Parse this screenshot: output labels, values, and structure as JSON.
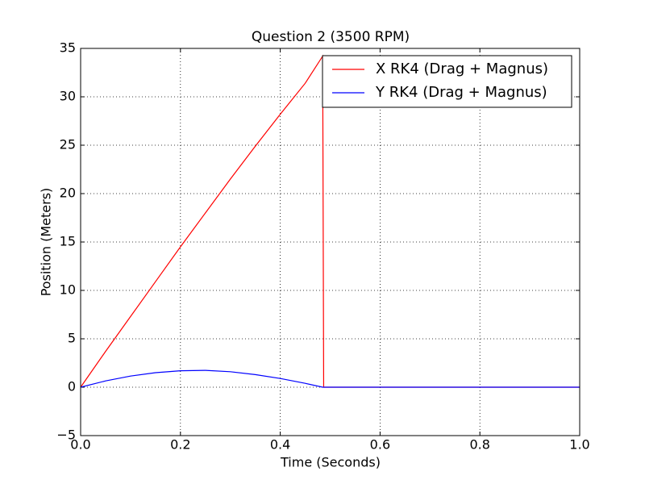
{
  "chart_data": {
    "type": "line",
    "title": "Question 2 (3500 RPM)",
    "xlabel": "Time (Seconds)",
    "ylabel": "Position (Meters)",
    "x": [
      0,
      0.05,
      0.1,
      0.15,
      0.2,
      0.25,
      0.3,
      0.35,
      0.4,
      0.45,
      0.485,
      0.487,
      0.6,
      0.8,
      1.0
    ],
    "series": [
      {
        "name": "X RK4 (Drag + Magnus)",
        "color": "#ff0000",
        "values": [
          0,
          3.7,
          7.3,
          10.9,
          14.5,
          18.0,
          21.5,
          24.9,
          28.2,
          31.4,
          34.2,
          0,
          0,
          0,
          0
        ]
      },
      {
        "name": "Y RK4 (Drag + Magnus)",
        "color": "#0000ff",
        "values": [
          0,
          0.65,
          1.15,
          1.5,
          1.7,
          1.74,
          1.6,
          1.3,
          0.9,
          0.4,
          0,
          0,
          0,
          0,
          0
        ]
      }
    ],
    "xlim": [
      0,
      1.0
    ],
    "ylim": [
      -5,
      35
    ],
    "xticks": [
      {
        "value": 0,
        "label": "0.0"
      },
      0.2,
      0.4,
      0.6,
      0.8,
      {
        "value": 1.0,
        "label": "1.0"
      }
    ],
    "yticks": [
      {
        "value": -5,
        "label": "−5"
      },
      0,
      5,
      10,
      15,
      20,
      25,
      30,
      35
    ],
    "grid": true,
    "legend": "upper right"
  }
}
